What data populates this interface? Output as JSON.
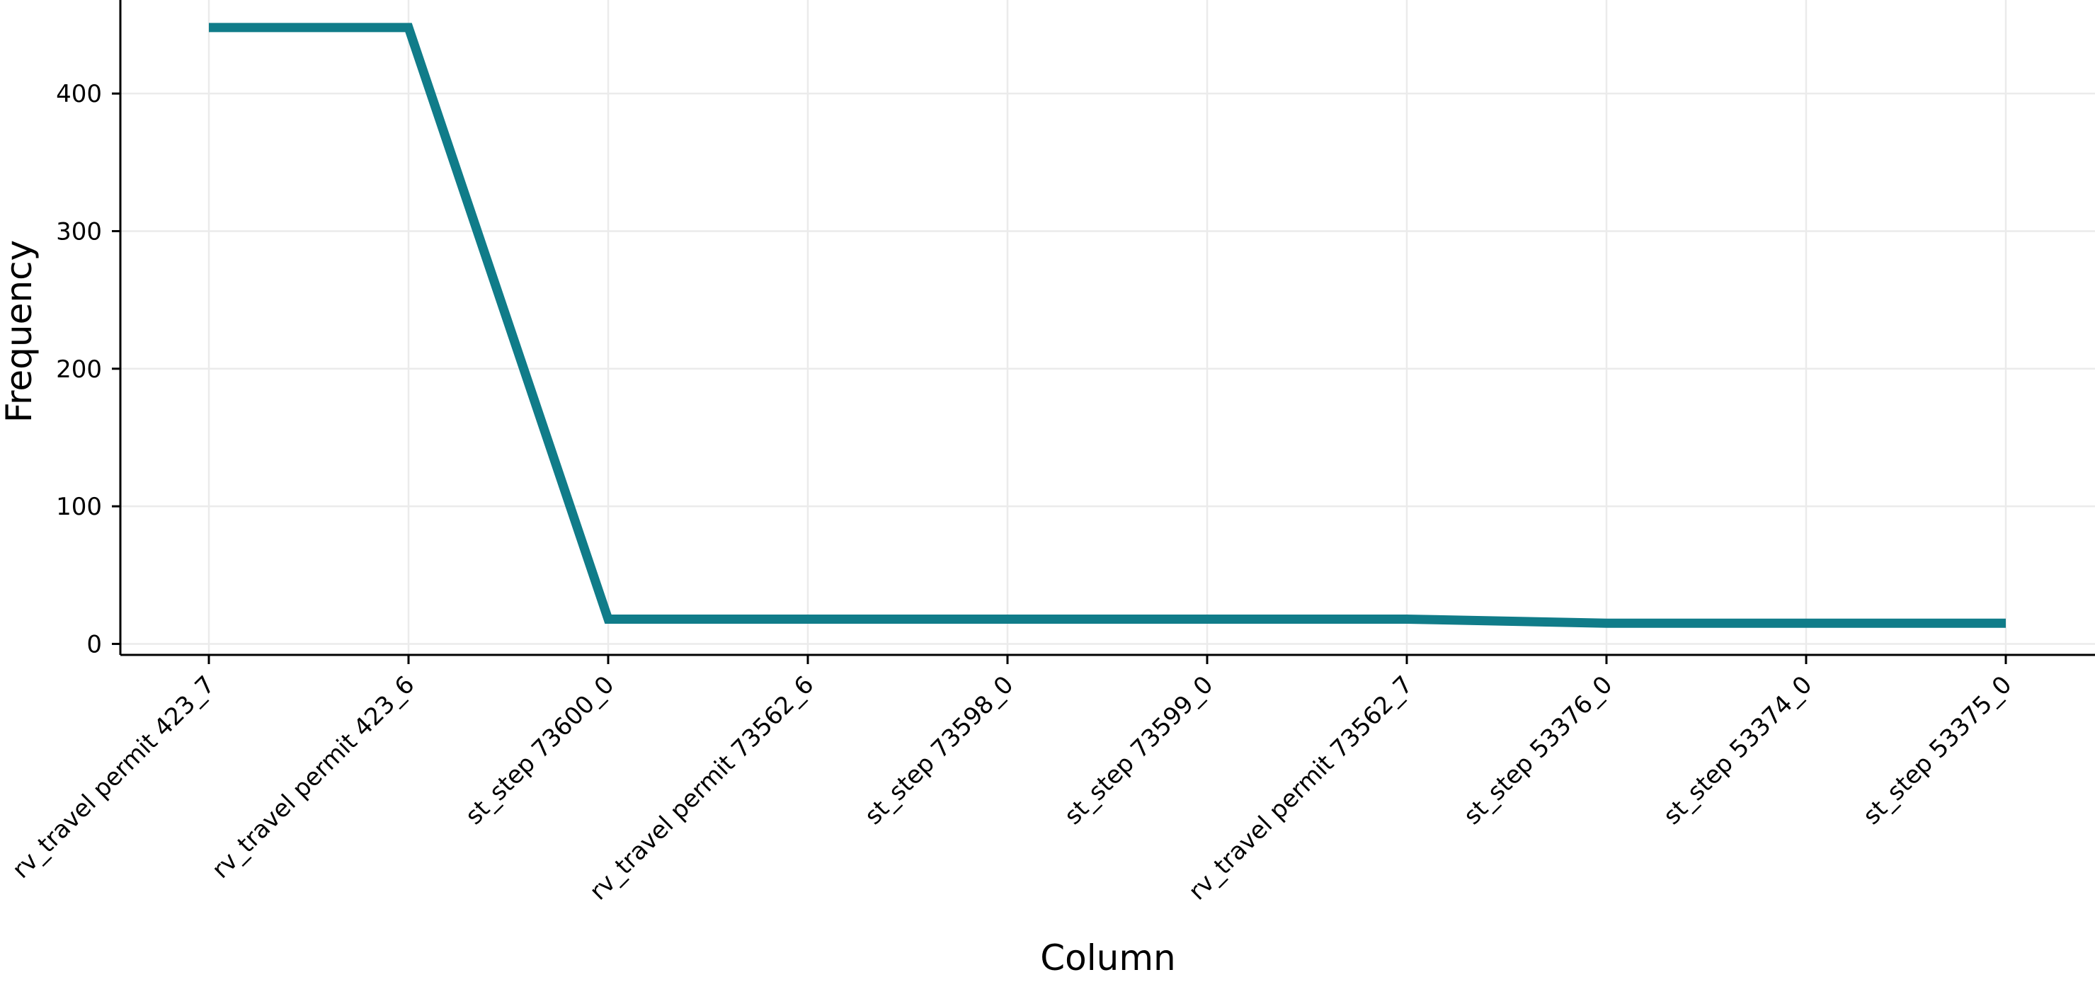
{
  "chart_data": {
    "type": "line",
    "title": "",
    "xlabel": "Column",
    "ylabel": "Frequency",
    "categories": [
      "rv_travel permit 423_7",
      "rv_travel permit 423_6",
      "st_step 73600_0",
      "rv_travel permit 73562_6",
      "st_step 73598_0",
      "st_step 73599_0",
      "rv_travel permit 73562_7",
      "st_step 53376_0",
      "st_step 53374_0",
      "st_step 53375_0"
    ],
    "series": [
      {
        "values": [
          448,
          448,
          18,
          18,
          18,
          18,
          18,
          15,
          15,
          15
        ],
        "color": "#107c89"
      }
    ],
    "ylim": [
      -8,
      468
    ],
    "yticks": [
      0,
      100,
      200,
      300,
      400
    ],
    "grid": true,
    "legend": "none"
  }
}
